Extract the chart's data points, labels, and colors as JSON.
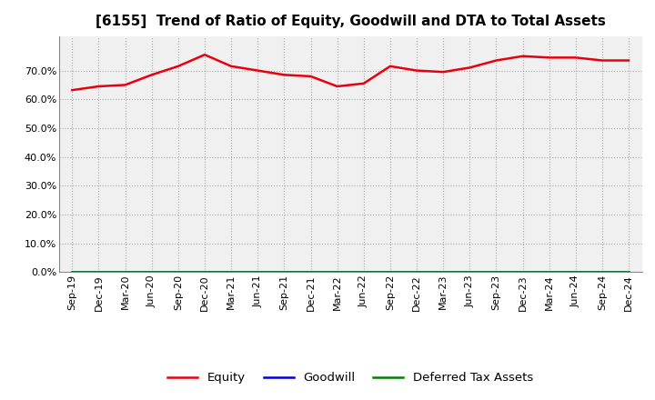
{
  "title": "[6155]  Trend of Ratio of Equity, Goodwill and DTA to Total Assets",
  "x_labels": [
    "Sep-19",
    "Dec-19",
    "Mar-20",
    "Jun-20",
    "Sep-20",
    "Dec-20",
    "Mar-21",
    "Jun-21",
    "Sep-21",
    "Dec-21",
    "Mar-22",
    "Jun-22",
    "Sep-22",
    "Dec-22",
    "Mar-23",
    "Jun-23",
    "Sep-23",
    "Dec-23",
    "Mar-24",
    "Jun-24",
    "Sep-24",
    "Dec-24"
  ],
  "equity": [
    63.2,
    64.5,
    65.0,
    68.5,
    71.5,
    75.5,
    71.5,
    70.0,
    68.5,
    68.0,
    64.5,
    65.5,
    71.5,
    70.0,
    69.5,
    71.0,
    73.5,
    75.0,
    74.5,
    74.5,
    73.5,
    73.5
  ],
  "goodwill": [
    0.0,
    0.0,
    0.0,
    0.0,
    0.0,
    0.0,
    0.0,
    0.0,
    0.0,
    0.0,
    0.0,
    0.0,
    0.0,
    0.0,
    0.0,
    0.0,
    0.0,
    0.0,
    0.0,
    0.0,
    0.0,
    0.0
  ],
  "dta": [
    0.0,
    0.0,
    0.0,
    0.0,
    0.0,
    0.0,
    0.0,
    0.0,
    0.0,
    0.0,
    0.0,
    0.0,
    0.0,
    0.0,
    0.0,
    0.0,
    0.0,
    0.0,
    0.0,
    0.0,
    0.0,
    0.0
  ],
  "equity_color": "#e8000d",
  "goodwill_color": "#0000cd",
  "dta_color": "#008000",
  "ylim": [
    0,
    82
  ],
  "yticks": [
    0,
    10,
    20,
    30,
    40,
    50,
    60,
    70
  ],
  "ytick_labels": [
    "0.0%",
    "10.0%",
    "20.0%",
    "30.0%",
    "40.0%",
    "50.0%",
    "60.0%",
    "70.0%"
  ],
  "background_color": "#ffffff",
  "plot_bg_color": "#f0f0f0",
  "grid_color": "#999999",
  "title_fontsize": 11,
  "tick_fontsize": 8,
  "legend_labels": [
    "Equity",
    "Goodwill",
    "Deferred Tax Assets"
  ]
}
